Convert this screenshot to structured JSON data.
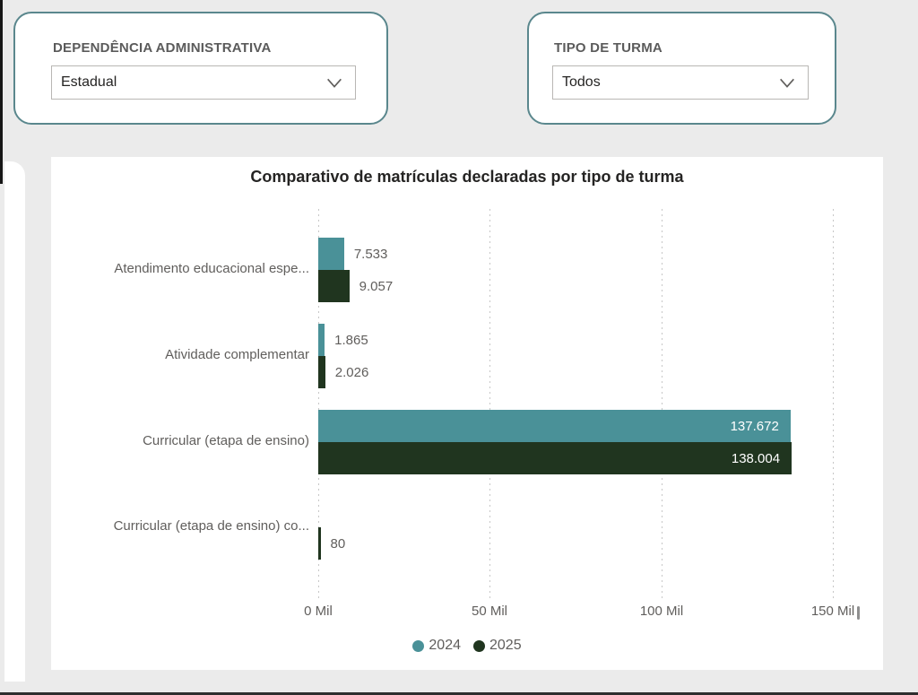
{
  "filters": [
    {
      "label": "DEPENDÊNCIA ADMINISTRATIVA",
      "value": "Estadual"
    },
    {
      "label": "TIPO DE TURMA",
      "value": "Todos"
    }
  ],
  "left_panel_fragment": {
    "ellipsis_1": "...",
    "ellipsis_2": "..."
  },
  "chart_data": {
    "type": "bar",
    "orientation": "horizontal",
    "title": "Comparativo de matrículas declaradas por tipo de turma",
    "categories": [
      "Atendimento educacional espe...",
      "Atividade complementar",
      "Curricular (etapa de ensino)",
      "Curricular (etapa de ensino) co..."
    ],
    "series": [
      {
        "name": "2024",
        "color": "#4a9198",
        "values": [
          7533,
          1865,
          137672,
          null
        ],
        "labels": [
          "7.533",
          "1.865",
          "137.672",
          null
        ]
      },
      {
        "name": "2025",
        "color": "#20351f",
        "values": [
          9057,
          2026,
          138004,
          80
        ],
        "labels": [
          "9.057",
          "2.026",
          "138.004",
          "80"
        ]
      }
    ],
    "x_ticks": [
      {
        "label": "0 Mil",
        "value": 0
      },
      {
        "label": "50 Mil",
        "value": 50000
      },
      {
        "label": "100 Mil",
        "value": 100000
      },
      {
        "label": "150 Mil",
        "value": 150000
      }
    ],
    "xlim": [
      0,
      150000
    ],
    "grid": "dotted-vertical",
    "legend_position": "bottom-center",
    "colors": {
      "value_label_inside": "#ffffff",
      "value_label_outside": "#605e5c",
      "axis_text": "#605e5c",
      "title_text": "#252423",
      "gridline": "#c7c7c7"
    }
  }
}
